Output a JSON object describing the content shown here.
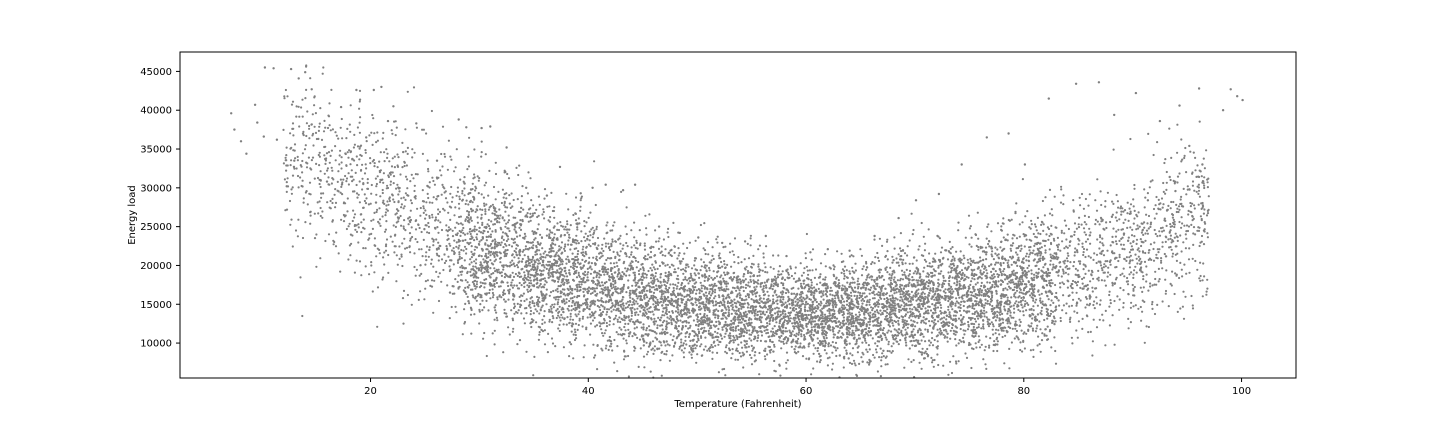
{
  "chart_data": {
    "type": "scatter",
    "title": "",
    "xlabel": "Temperature (Fahrenheit)",
    "ylabel": "Energy load",
    "xlim": [
      2.5,
      105.0
    ],
    "ylim": [
      5500,
      47500
    ],
    "xticks": [
      20,
      40,
      60,
      80,
      100
    ],
    "yticks": [
      10000,
      15000,
      20000,
      25000,
      30000,
      35000,
      40000,
      45000
    ],
    "grid": false,
    "legend": "none",
    "marker_color": "#808080",
    "series": [
      {
        "points": [
          [
            7.2,
            39600
          ],
          [
            7.5,
            37500
          ],
          [
            8.1,
            36000
          ],
          [
            8.6,
            34400
          ],
          [
            9.4,
            40700
          ],
          [
            9.6,
            38400
          ],
          [
            10.3,
            45500
          ],
          [
            10.2,
            36600
          ],
          [
            11.1,
            45400
          ],
          [
            11.4,
            36200
          ],
          [
            12.3,
            30200
          ],
          [
            12.7,
            45300
          ],
          [
            13.4,
            44100
          ],
          [
            13.0,
            33500
          ],
          [
            14.0,
            44900
          ],
          [
            14.6,
            42700
          ],
          [
            15.2,
            36300
          ],
          [
            16.0,
            30800
          ],
          [
            17.3,
            40400
          ],
          [
            18.2,
            34700
          ],
          [
            18.7,
            42600
          ],
          [
            19.6,
            36500
          ],
          [
            20.3,
            42600
          ],
          [
            20.5,
            28100
          ],
          [
            21.0,
            43000
          ],
          [
            21.6,
            38600
          ],
          [
            22.1,
            40500
          ],
          [
            23.0,
            34600
          ],
          [
            23.6,
            26200
          ],
          [
            24.2,
            38300
          ],
          [
            25.4,
            22000
          ],
          [
            26.1,
            33500
          ],
          [
            27.3,
            16500
          ],
          [
            28.1,
            38800
          ],
          [
            28.8,
            37800
          ],
          [
            29.0,
            15400
          ],
          [
            30.2,
            37700
          ],
          [
            31.0,
            37900
          ],
          [
            31.4,
            14600
          ],
          [
            32.5,
            35200
          ],
          [
            33.1,
            15600
          ],
          [
            34.3,
            30000
          ],
          [
            35.7,
            11700
          ],
          [
            36.2,
            29000
          ],
          [
            37.4,
            32700
          ],
          [
            38.3,
            10100
          ],
          [
            39.3,
            29300
          ],
          [
            40.4,
            30000
          ],
          [
            41.6,
            30400
          ],
          [
            42.1,
            9900
          ],
          [
            43.2,
            29700
          ],
          [
            44.3,
            30400
          ],
          [
            45.1,
            9700
          ],
          [
            46.5,
            25000
          ],
          [
            47.2,
            10200
          ],
          [
            48.4,
            24200
          ],
          [
            49.3,
            8800
          ],
          [
            50.1,
            23600
          ],
          [
            51.2,
            9400
          ],
          [
            52.3,
            22900
          ],
          [
            53.0,
            9100
          ],
          [
            54.4,
            23100
          ],
          [
            55.2,
            9400
          ],
          [
            56.3,
            23800
          ],
          [
            57.0,
            8900
          ],
          [
            58.2,
            21200
          ],
          [
            59.1,
            8700
          ],
          [
            60.4,
            21700
          ],
          [
            61.2,
            8600
          ],
          [
            62.0,
            22100
          ],
          [
            63.1,
            8400
          ],
          [
            64.0,
            21900
          ],
          [
            65.2,
            7600
          ],
          [
            66.3,
            23800
          ],
          [
            67.1,
            9000
          ],
          [
            68.5,
            26100
          ],
          [
            69.2,
            9700
          ],
          [
            70.1,
            28400
          ],
          [
            71.3,
            10300
          ],
          [
            72.2,
            29200
          ],
          [
            73.0,
            11200
          ],
          [
            74.3,
            33000
          ],
          [
            75.1,
            13200
          ],
          [
            76.6,
            36500
          ],
          [
            77.3,
            14500
          ],
          [
            78.6,
            37000
          ],
          [
            79.4,
            14700
          ],
          [
            80.1,
            33000
          ],
          [
            81.3,
            13700
          ],
          [
            82.3,
            41500
          ],
          [
            83.2,
            15500
          ],
          [
            84.8,
            43400
          ],
          [
            85.4,
            17000
          ],
          [
            86.9,
            43600
          ],
          [
            87.3,
            22600
          ],
          [
            88.3,
            39400
          ],
          [
            89.2,
            24100
          ],
          [
            90.3,
            42200
          ],
          [
            91.4,
            28400
          ],
          [
            92.5,
            38600
          ],
          [
            93.4,
            31400
          ],
          [
            94.3,
            40600
          ],
          [
            95.2,
            35400
          ],
          [
            96.1,
            42800
          ],
          [
            96.4,
            33000
          ],
          [
            98.3,
            40000
          ],
          [
            99.0,
            42700
          ],
          [
            99.6,
            41800
          ],
          [
            100.1,
            41300
          ]
        ]
      }
    ],
    "density_band": {
      "x_range": [
        12,
        97
      ],
      "center_curve_quadratic": {
        "vertex_x": 60,
        "vertex_y": 14000,
        "a": 9.2
      },
      "spread": 3800,
      "count": 9000,
      "seed": 7
    }
  }
}
